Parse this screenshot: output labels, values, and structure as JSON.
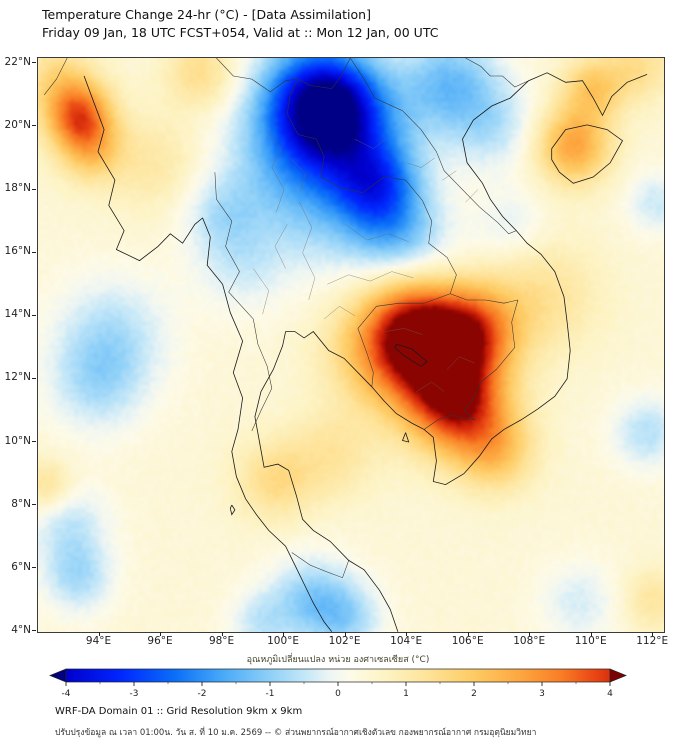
{
  "header": {
    "title": "Temperature Change 24-hr (°C) - [Data Assimilation]",
    "subtitle": "Friday 09 Jan, 18 UTC FCST+054, Valid at :: Mon 12 Jan, 00 UTC"
  },
  "chart_data": {
    "type": "heatmap",
    "title": "Temperature Change 24-hr (°C) - [Data Assimilation]",
    "subtitle": "Friday 09 Jan, 18 UTC FCST+054, Valid at :: Mon 12 Jan, 00 UTC",
    "units": "°C",
    "x_axis": {
      "ticks": [
        94,
        96,
        98,
        100,
        102,
        104,
        106,
        108,
        110,
        112
      ],
      "suffix": "°E",
      "range": [
        92.0,
        112.35
      ]
    },
    "y_axis": {
      "ticks": [
        22,
        20,
        18,
        16,
        14,
        12,
        10,
        8,
        6,
        4
      ],
      "suffix": "°N",
      "range": [
        3.98,
        22.17
      ]
    },
    "colorbar": {
      "label": "อุณหภูมิเปลี่ยนแปลง หน่วย องศาเซลเซียส (°C)",
      "ticks": [
        -4,
        -3,
        -2,
        -1,
        0,
        1,
        2,
        3,
        4
      ],
      "range": [
        -4,
        4
      ],
      "extend": "both"
    },
    "colormap": [
      [
        -4.6,
        "#000080"
      ],
      [
        -4.0,
        "#0000cd"
      ],
      [
        -3.2,
        "#0026ff"
      ],
      [
        -2.4,
        "#0a6ff8"
      ],
      [
        -1.7,
        "#48a9f8"
      ],
      [
        -1.0,
        "#8ed0f8"
      ],
      [
        -0.45,
        "#c8e9f8"
      ],
      [
        -0.1,
        "#eef6f4"
      ],
      [
        0.15,
        "#fdfbea"
      ],
      [
        0.7,
        "#fdf3c3"
      ],
      [
        1.3,
        "#fee49a"
      ],
      [
        2.0,
        "#fecb63"
      ],
      [
        2.7,
        "#fda53f"
      ],
      [
        3.3,
        "#f97c24"
      ],
      [
        3.8,
        "#e84313"
      ],
      [
        4.3,
        "#c21705"
      ],
      [
        4.6,
        "#7f0000"
      ]
    ],
    "field": {
      "base": 0.4,
      "blob_format": [
        "lon_deg_E",
        "lat_deg_N",
        "amplitude_C",
        "sigma_deg"
      ],
      "blobs": [
        [
          101.5,
          20.6,
          -3.6,
          1.15
        ],
        [
          102.0,
          19.6,
          -1.8,
          1.6
        ],
        [
          100.6,
          21.3,
          -1.2,
          1.2
        ],
        [
          103.0,
          18.2,
          -2.0,
          0.9
        ],
        [
          103.5,
          16.8,
          -1.3,
          1.0
        ],
        [
          101.3,
          17.6,
          -1.0,
          1.6
        ],
        [
          99.8,
          19.3,
          -0.9,
          1.4
        ],
        [
          105.4,
          21.4,
          -1.6,
          1.1
        ],
        [
          106.8,
          20.0,
          -0.9,
          1.0
        ],
        [
          104.6,
          15.6,
          -0.6,
          1.2
        ],
        [
          97.9,
          17.3,
          -0.8,
          0.9
        ],
        [
          98.6,
          15.7,
          -0.7,
          1.1
        ],
        [
          94.4,
          13.4,
          -1.0,
          1.3
        ],
        [
          93.9,
          11.8,
          -0.9,
          1.1
        ],
        [
          93.0,
          7.4,
          -0.9,
          0.9
        ],
        [
          93.3,
          5.7,
          -1.1,
          0.8
        ],
        [
          100.9,
          5.0,
          -1.4,
          0.95
        ],
        [
          102.1,
          4.4,
          -1.0,
          0.8
        ],
        [
          99.2,
          4.3,
          -0.8,
          0.7
        ],
        [
          109.6,
          4.9,
          -0.7,
          0.9
        ],
        [
          111.8,
          10.3,
          -1.0,
          0.8
        ],
        [
          112.1,
          17.6,
          -0.8,
          0.7
        ],
        [
          107.4,
          16.9,
          -0.6,
          0.8
        ],
        [
          93.3,
          20.4,
          2.9,
          0.75
        ],
        [
          93.7,
          19.3,
          1.6,
          0.75
        ],
        [
          92.6,
          21.6,
          1.0,
          0.8
        ],
        [
          109.4,
          19.4,
          2.3,
          0.85
        ],
        [
          110.0,
          21.2,
          1.5,
          0.7
        ],
        [
          111.5,
          21.9,
          1.0,
          0.8
        ],
        [
          104.8,
          12.7,
          3.4,
          1.35
        ],
        [
          105.7,
          11.1,
          3.0,
          1.1
        ],
        [
          104.2,
          13.9,
          2.2,
          1.1
        ],
        [
          106.2,
          13.6,
          2.2,
          1.0
        ],
        [
          102.9,
          12.9,
          1.2,
          1.2
        ],
        [
          106.9,
          9.7,
          1.5,
          0.9
        ],
        [
          108.4,
          14.6,
          0.9,
          1.3
        ],
        [
          99.7,
          8.8,
          1.1,
          0.9
        ],
        [
          101.6,
          9.6,
          0.8,
          1.0
        ],
        [
          97.3,
          21.7,
          1.1,
          0.8
        ],
        [
          95.8,
          18.8,
          0.7,
          1.1
        ],
        [
          92.3,
          8.6,
          1.0,
          0.6
        ],
        [
          112.0,
          5.0,
          0.8,
          0.7
        ]
      ]
    }
  },
  "footer": {
    "line1": "WRF-DA Domain 01 :: Grid Resolution 9km x 9km",
    "line2": "ปรับปรุงข้อมูล ณ เวลา 01:00น. วัน ส. ที่ 10 ม.ค. 2569 -- © ส่วนพยากรณ์อากาศเชิงตัวเลข กองพยากรณ์อากาศ กรมอุตุนิยมวิทยา"
  }
}
